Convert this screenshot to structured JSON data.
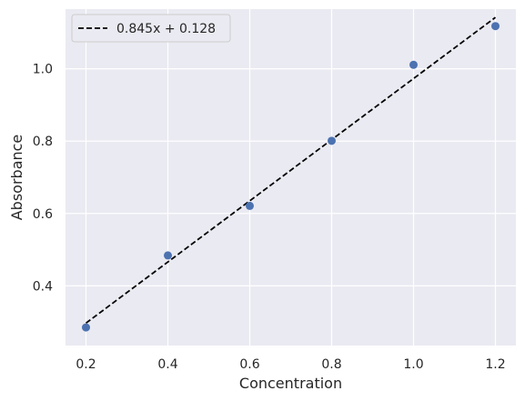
{
  "chart_data": {
    "type": "scatter",
    "xlabel": "Concentration",
    "ylabel": "Absorbance",
    "xlim": [
      0.15,
      1.25
    ],
    "ylim": [
      0.235,
      1.165
    ],
    "x_ticks": [
      0.2,
      0.4,
      0.6,
      0.8,
      1.0,
      1.2
    ],
    "x_tick_labels": [
      "0.2",
      "0.4",
      "0.6",
      "0.8",
      "1.0",
      "1.2"
    ],
    "y_ticks": [
      0.4,
      0.6,
      0.8,
      1.0
    ],
    "y_tick_labels": [
      "0.4",
      "0.6",
      "0.8",
      "1.0"
    ],
    "grid": true,
    "legend_position": "top-left",
    "series": [
      {
        "kind": "scatter",
        "color": "#4c72b0",
        "x": [
          0.2,
          0.4,
          0.6,
          0.8,
          1.0,
          1.2
        ],
        "y": [
          0.285,
          0.484,
          0.621,
          0.801,
          1.011,
          1.118
        ]
      },
      {
        "kind": "line",
        "name": "0.845x + 0.128",
        "style": "dashed",
        "color": "#000000",
        "slope": 0.845,
        "intercept": 0.128,
        "x": [
          0.2,
          1.2
        ]
      }
    ],
    "colors": {
      "plot_background": "#eaeaf2",
      "grid": "#ffffff",
      "text": "#262626"
    }
  }
}
